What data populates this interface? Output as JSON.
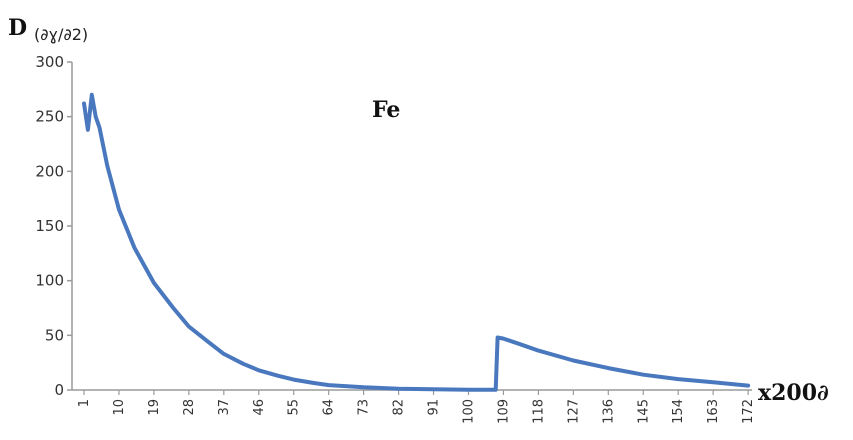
{
  "colors": {
    "series": "#4a78be",
    "axis": "#9a9a9a",
    "text": "#333333"
  },
  "chart_data": {
    "type": "line",
    "title": "",
    "annotation": "Fe",
    "ylabel": {
      "main": "D",
      "sub": "(∂ɣ/∂2)"
    },
    "xlabel": "x200∂",
    "ylim": [
      0,
      300
    ],
    "xlim": [
      1,
      173
    ],
    "grid": false,
    "legend": "none",
    "yticks": [
      "0",
      "50",
      "100",
      "150",
      "200",
      "250",
      "300"
    ],
    "xticks": [
      {
        "x": 1,
        "label": "1"
      },
      {
        "x": 10,
        "label": "10"
      },
      {
        "x": 19,
        "label": "19"
      },
      {
        "x": 28,
        "label": "28"
      },
      {
        "x": 37,
        "label": "37"
      },
      {
        "x": 46,
        "label": "46"
      },
      {
        "x": 55,
        "label": "55"
      },
      {
        "x": 64,
        "label": "64"
      },
      {
        "x": 73,
        "label": "73"
      },
      {
        "x": 82,
        "label": "82"
      },
      {
        "x": 91,
        "label": "91"
      },
      {
        "x": 100,
        "label": "100"
      },
      {
        "x": 109,
        "label": "109"
      },
      {
        "x": 118,
        "label": "118"
      },
      {
        "x": 127,
        "label": "127"
      },
      {
        "x": 136,
        "label": "136"
      },
      {
        "x": 145,
        "label": "145"
      },
      {
        "x": 154,
        "label": "154"
      },
      {
        "x": 163,
        "label": "163"
      },
      {
        "x": 172,
        "label": "172"
      }
    ],
    "series": [
      {
        "x": [
          1,
          2,
          3,
          4,
          5,
          7,
          10,
          14,
          19,
          24,
          28,
          33,
          37,
          42,
          46,
          51,
          55,
          60,
          64,
          73,
          82,
          91,
          100,
          106,
          107,
          107.5,
          109,
          114,
          118,
          127,
          136,
          145,
          154,
          163,
          172
        ],
        "y": [
          262,
          238,
          270,
          250,
          240,
          205,
          165,
          130,
          98,
          75,
          58,
          44,
          33,
          24,
          18,
          13,
          9.5,
          6.5,
          4.5,
          2.5,
          1.2,
          0.6,
          0.3,
          0.2,
          0.2,
          48,
          47,
          41,
          36,
          27,
          20,
          14,
          10,
          7,
          4
        ]
      }
    ]
  }
}
